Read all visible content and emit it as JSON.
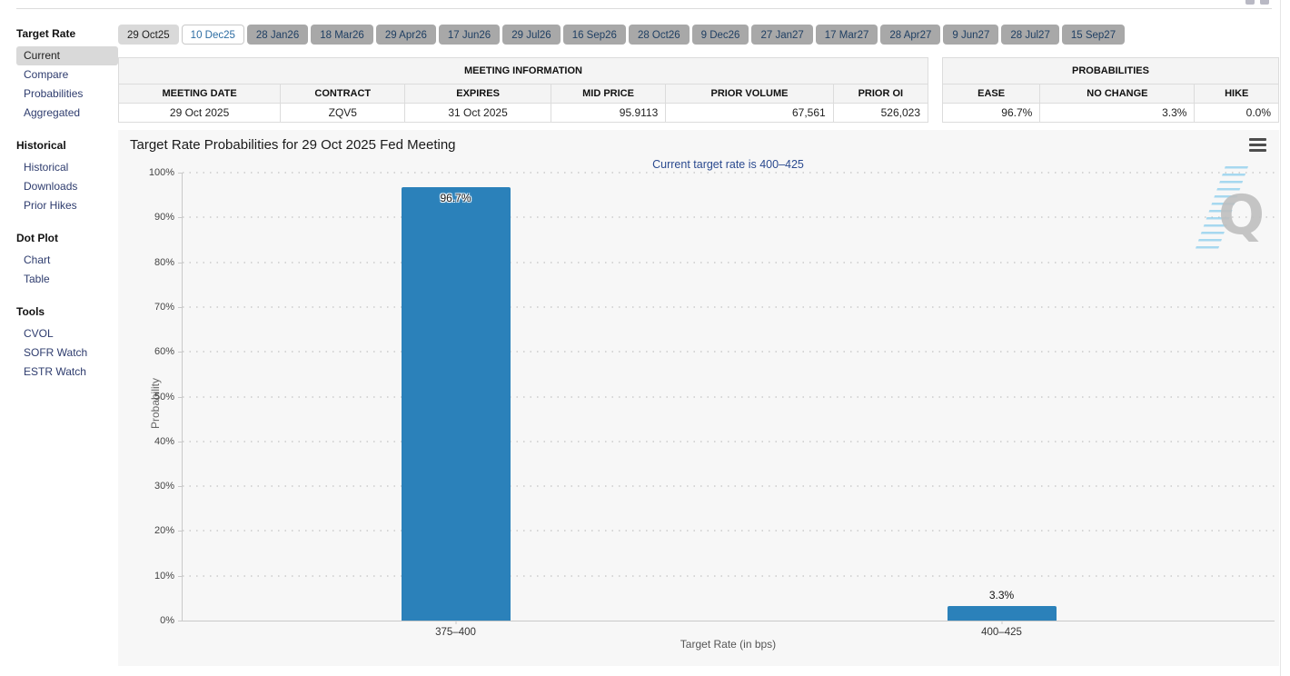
{
  "tabs": {
    "items": [
      {
        "label": "29 Oct25",
        "variant": "past"
      },
      {
        "label": "10 Dec25",
        "variant": "active"
      },
      {
        "label": "28 Jan26",
        "variant": "default"
      },
      {
        "label": "18 Mar26",
        "variant": "default"
      },
      {
        "label": "29 Apr26",
        "variant": "default"
      },
      {
        "label": "17 Jun26",
        "variant": "default"
      },
      {
        "label": "29 Jul26",
        "variant": "default"
      },
      {
        "label": "16 Sep26",
        "variant": "default"
      },
      {
        "label": "28 Oct26",
        "variant": "default"
      },
      {
        "label": "9 Dec26",
        "variant": "default"
      },
      {
        "label": "27 Jan27",
        "variant": "default"
      },
      {
        "label": "17 Mar27",
        "variant": "default"
      },
      {
        "label": "28 Apr27",
        "variant": "default"
      },
      {
        "label": "9 Jun27",
        "variant": "default"
      },
      {
        "label": "28 Jul27",
        "variant": "default"
      },
      {
        "label": "15 Sep27",
        "variant": "default"
      }
    ]
  },
  "sidebar": {
    "sections": [
      {
        "title": "Target Rate",
        "items": [
          {
            "label": "Current",
            "active": true
          },
          {
            "label": "Compare",
            "active": false
          },
          {
            "label": "Probabilities",
            "active": false
          },
          {
            "label": "Aggregated",
            "active": false
          }
        ]
      },
      {
        "title": "Historical",
        "items": [
          {
            "label": "Historical",
            "active": false
          },
          {
            "label": "Downloads",
            "active": false
          },
          {
            "label": "Prior Hikes",
            "active": false
          }
        ]
      },
      {
        "title": "Dot Plot",
        "items": [
          {
            "label": "Chart",
            "active": false
          },
          {
            "label": "Table",
            "active": false
          }
        ]
      },
      {
        "title": "Tools",
        "items": [
          {
            "label": "CVOL",
            "active": false
          },
          {
            "label": "SOFR Watch",
            "active": false
          },
          {
            "label": "ESTR Watch",
            "active": false
          }
        ]
      }
    ]
  },
  "meeting_info": {
    "title": "MEETING INFORMATION",
    "columns": [
      "MEETING DATE",
      "CONTRACT",
      "EXPIRES",
      "MID PRICE",
      "PRIOR VOLUME",
      "PRIOR OI"
    ],
    "col_widths": [
      "20%",
      "15.4%",
      "18%",
      "14.2%",
      "20.7%",
      "11.7%"
    ],
    "row": [
      "29 Oct 2025",
      "ZQV5",
      "31 Oct 2025",
      "95.9113",
      "67,561",
      "526,023"
    ],
    "align": [
      "center",
      "center",
      "center",
      "right",
      "right",
      "right"
    ]
  },
  "probabilities": {
    "title": "PROBABILITIES",
    "columns": [
      "EASE",
      "NO CHANGE",
      "HIKE"
    ],
    "col_widths": [
      "29%",
      "46%",
      "25%"
    ],
    "row": [
      "96.7%",
      "3.3%",
      "0.0%"
    ],
    "align": [
      "right",
      "right",
      "right"
    ]
  },
  "chart_data": {
    "type": "bar",
    "title": "Target Rate Probabilities for 29 Oct 2025 Fed Meeting",
    "subtitle": "Current target rate is 400–425",
    "categories": [
      "375–400",
      "400–425"
    ],
    "values": [
      96.7,
      3.3
    ],
    "value_labels": [
      "96.7%",
      "3.3%"
    ],
    "label_positions": [
      "inside",
      "above"
    ],
    "xlabel": "Target Rate (in bps)",
    "ylabel": "Probability",
    "ylim": [
      0,
      100
    ],
    "ytick_step": 10,
    "ytick_labels": [
      "0%",
      "10%",
      "20%",
      "30%",
      "40%",
      "50%",
      "60%",
      "70%",
      "80%",
      "90%",
      "100%"
    ],
    "grid": "dotted-horizontal",
    "legend": "none",
    "bar_color": "#2b81ba"
  },
  "watermark": {
    "letter": "Q"
  },
  "colors": {
    "bar": "#2b81ba",
    "sidebar_link": "#2e3c6e",
    "active_tab_text": "#2d6da3",
    "subtitle_text": "#2b4a8f",
    "chart_bg": "#f7f7f7"
  }
}
